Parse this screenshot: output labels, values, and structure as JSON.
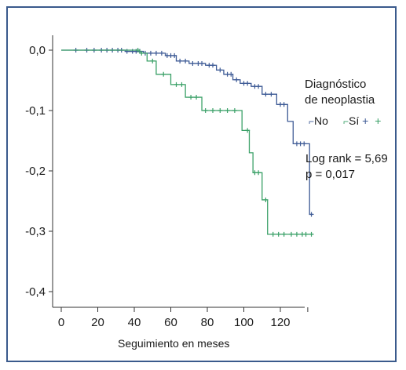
{
  "chart_data": {
    "type": "line",
    "xlabel": "Seguimiento en meses",
    "ylabel": "",
    "xlim": [
      0,
      138
    ],
    "ylim": [
      -0.43,
      0.02
    ],
    "xticks": [
      "0",
      "20",
      "40",
      "60",
      "80",
      "100",
      "120"
    ],
    "xtick_values": [
      0,
      20,
      40,
      60,
      80,
      100,
      120
    ],
    "yticks": [
      "0,0",
      "-0,1",
      "-0,2",
      "-0,3",
      "-0,4"
    ],
    "ytick_values": [
      0,
      -0.1,
      -0.2,
      -0.3,
      -0.4
    ],
    "legend_title_line1": "Diagnóstico",
    "legend_title_line2": "de neoplastia",
    "annotation_line1": "Log rank = 5,69",
    "annotation_line2": "p = 0,017",
    "series": [
      {
        "name": "No",
        "color": "#3d5a95",
        "steps": [
          [
            0,
            0
          ],
          [
            35,
            -0.002
          ],
          [
            45,
            -0.005
          ],
          [
            57,
            -0.009
          ],
          [
            63,
            -0.018
          ],
          [
            70,
            -0.022
          ],
          [
            79,
            -0.025
          ],
          [
            85,
            -0.033
          ],
          [
            89,
            -0.04
          ],
          [
            94,
            -0.049
          ],
          [
            98,
            -0.055
          ],
          [
            104,
            -0.06
          ],
          [
            110,
            -0.073
          ],
          [
            118,
            -0.09
          ],
          [
            124,
            -0.118
          ],
          [
            127,
            -0.155
          ],
          [
            136,
            -0.272
          ],
          [
            138,
            -0.272
          ]
        ],
        "censored": [
          [
            8,
            0
          ],
          [
            14,
            0
          ],
          [
            18,
            0
          ],
          [
            22,
            0
          ],
          [
            25,
            0
          ],
          [
            28,
            0
          ],
          [
            31,
            0
          ],
          [
            33,
            0
          ],
          [
            36,
            -0.002
          ],
          [
            39,
            -0.002
          ],
          [
            41,
            -0.002
          ],
          [
            43,
            -0.002
          ],
          [
            46,
            -0.005
          ],
          [
            49,
            -0.005
          ],
          [
            52,
            -0.005
          ],
          [
            55,
            -0.005
          ],
          [
            58,
            -0.009
          ],
          [
            60,
            -0.009
          ],
          [
            62,
            -0.009
          ],
          [
            65,
            -0.018
          ],
          [
            68,
            -0.018
          ],
          [
            72,
            -0.022
          ],
          [
            75,
            -0.022
          ],
          [
            77,
            -0.022
          ],
          [
            81,
            -0.025
          ],
          [
            83,
            -0.025
          ],
          [
            87,
            -0.033
          ],
          [
            91,
            -0.04
          ],
          [
            93,
            -0.04
          ],
          [
            96,
            -0.049
          ],
          [
            100,
            -0.055
          ],
          [
            102,
            -0.055
          ],
          [
            106,
            -0.06
          ],
          [
            108,
            -0.06
          ],
          [
            112,
            -0.073
          ],
          [
            115,
            -0.073
          ],
          [
            120,
            -0.09
          ],
          [
            122,
            -0.09
          ],
          [
            129,
            -0.155
          ],
          [
            131,
            -0.155
          ],
          [
            133,
            -0.155
          ],
          [
            137,
            -0.272
          ]
        ]
      },
      {
        "name": "Sí",
        "color": "#3aa067",
        "steps": [
          [
            0,
            0
          ],
          [
            43,
            -0.005
          ],
          [
            47,
            -0.018
          ],
          [
            52,
            -0.04
          ],
          [
            60,
            -0.057
          ],
          [
            68,
            -0.078
          ],
          [
            77,
            -0.1
          ],
          [
            99,
            -0.133
          ],
          [
            103,
            -0.17
          ],
          [
            105,
            -0.203
          ],
          [
            110,
            -0.248
          ],
          [
            113,
            -0.305
          ],
          [
            138,
            -0.305
          ]
        ],
        "censored": [
          [
            42,
            0
          ],
          [
            44,
            -0.005
          ],
          [
            50,
            -0.018
          ],
          [
            56,
            -0.04
          ],
          [
            63,
            -0.057
          ],
          [
            66,
            -0.057
          ],
          [
            71,
            -0.078
          ],
          [
            74,
            -0.078
          ],
          [
            79,
            -0.1
          ],
          [
            83,
            -0.1
          ],
          [
            87,
            -0.1
          ],
          [
            91,
            -0.1
          ],
          [
            95,
            -0.1
          ],
          [
            102,
            -0.133
          ],
          [
            106,
            -0.203
          ],
          [
            108,
            -0.203
          ],
          [
            112,
            -0.248
          ],
          [
            116,
            -0.305
          ],
          [
            119,
            -0.305
          ],
          [
            122,
            -0.305
          ],
          [
            126,
            -0.305
          ],
          [
            129,
            -0.305
          ],
          [
            132,
            -0.305
          ],
          [
            134,
            -0.305
          ],
          [
            137,
            -0.305
          ]
        ]
      }
    ]
  }
}
